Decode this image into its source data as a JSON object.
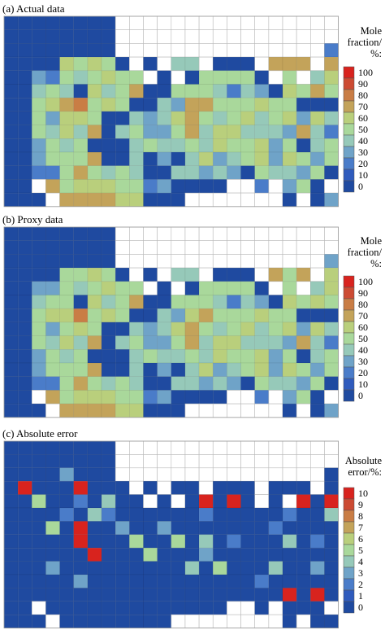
{
  "chart_data": [
    {
      "type": "heatmap",
      "title": "(a) Actual data",
      "colorbar": {
        "label_lines": [
          "Mole",
          "fraction/",
          "%:"
        ],
        "ticks": [
          "100",
          "90",
          "80",
          "70",
          "60",
          "50",
          "40",
          "30",
          "20",
          "10",
          "0"
        ],
        "range": [
          0,
          100
        ]
      },
      "grid": {
        "cols": 24,
        "rows": 14,
        "scale": 100,
        "encoding": "one string per row, one char per cell: '.' = empty (white), '0'-'9' = value band (x10 of scale), 'A' = top band",
        "rows_data": [
          "00000000..............",
          "00000000...................",
          "00000000...............2....",
          "000065650.0.44.000.777.7.....",
          "0032545655.0.055550.5.465.7..",
          "00454064570055542430657544.0.",
          "00567856500437755565500006450",
          "00536650043467545645636454030",
          "00546470453357466444374235500",
          "0035450004544546556350453200.",
          "00355570040304634563653566550",
          "0022575454004434305443505030.",
          "00.7566655230000..2.350.1.0..",
          "000.777766000.......0.03...0."
        ]
      }
    },
    {
      "type": "heatmap",
      "title": "(b) Proxy data",
      "colorbar": {
        "label_lines": [
          "Mole",
          "fraction/",
          "%:"
        ],
        "ticks": [
          "100",
          "90",
          "80",
          "70",
          "60",
          "50",
          "40",
          "30",
          "20",
          "10",
          "0"
        ],
        "range": [
          0,
          100
        ]
      },
      "grid": {
        "cols": 24,
        "rows": 14,
        "scale": 100,
        "encoding": "one string per row, one char per cell: '.' = empty (white), '0'-'9' = value band (x10 of scale), 'A' = top band",
        "rows_data": [
          "00000000..............",
          "00000000...................",
          "00000000...............3....",
          "000055650.0.44.000.757.6.....",
          "0033545655.0.055550.5.465.6..",
          "00455064570055542430656544.0.",
          "00566856500436755565500006450",
          "00535650043467545645636454030",
          "00546470453357466444374235500",
          "0035450004544546556350453200.",
          "00355570040304634563653566550",
          "0022575454004434305443505030.",
          "00.7566655230000..2.350.1.0..",
          "000.777766000.......0.03...0."
        ]
      }
    },
    {
      "type": "heatmap",
      "title": "(c) Absolute error",
      "colorbar": {
        "label_lines": [
          "Absolute",
          "error/%:"
        ],
        "ticks": [
          "10",
          "9",
          "8",
          "7",
          "6",
          "5",
          "4",
          "3",
          "2",
          "1",
          "0"
        ],
        "range": [
          0,
          10
        ]
      },
      "grid": {
        "cols": 24,
        "rows": 14,
        "scale": 10,
        "encoding": "one string per row, one char per cell: '.' = empty (white), '0'-'9' = value band (x1 of scale), 'A' = top band",
        "rows_data": [
          "00000000..............",
          "00000000...................",
          "00003000...............0....",
          "0A000A000.0.00.000.000.0.....",
          "0050020400.0.0A0A0.0.A0A.0..",
          "00002042000000200000200400.0.",
          "00050A00300300000002000000000",
          "00000A00050050402000402000A00",
          "000000A0005000300000000020000",
          "00030000000004050004003000400",
          "00000300000000000020000000000",
          "00000000000000000000A0A00000.",
          "00.0000000000000..0.000.0.0..",
          "000.00000000........0.00...0."
        ]
      }
    }
  ]
}
